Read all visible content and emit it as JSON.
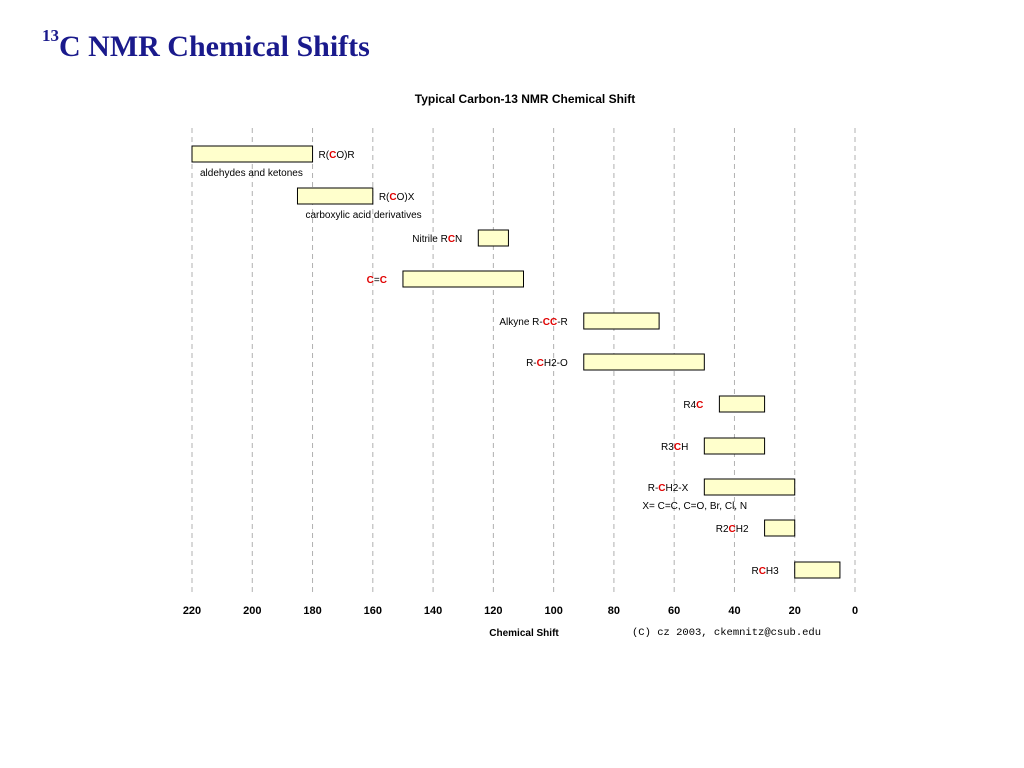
{
  "slide": {
    "title_sup": "13",
    "title_main": "C NMR Chemical Shifts"
  },
  "colors": {
    "title": "#1a1a8c",
    "bar_fill": "#ffffcc",
    "bar_stroke": "#000000",
    "highlight": "#e00000",
    "grid": "#b0b0b0"
  },
  "chart_data": {
    "type": "bar",
    "orientation": "horizontal-range",
    "title": "Typical Carbon-13 NMR Chemical Shift",
    "xlabel": "Chemical Shift",
    "credit": "(C) cz 2003, ckemnitz@csub.edu",
    "xlim": [
      220,
      0
    ],
    "x_reversed": true,
    "xticks": [
      220,
      200,
      180,
      160,
      140,
      120,
      100,
      80,
      60,
      40,
      20,
      0
    ],
    "grid": "vertical-dashed",
    "series": [
      {
        "label": [
          [
            "R(",
            false
          ],
          [
            "C",
            true
          ],
          [
            "O)R",
            false
          ]
        ],
        "sublabel": "aldehydes and ketones",
        "range": [
          220,
          180
        ],
        "label_side": "right"
      },
      {
        "label": [
          [
            "R(",
            false
          ],
          [
            "C",
            true
          ],
          [
            "O)X",
            false
          ]
        ],
        "sublabel": "carboxylic acid derivatives",
        "range": [
          185,
          160
        ],
        "label_side": "right"
      },
      {
        "label": [
          [
            "Nitrile R",
            false
          ],
          [
            "C",
            true
          ],
          [
            "N",
            false
          ]
        ],
        "sublabel": "",
        "range": [
          125,
          115
        ],
        "label_side": "left"
      },
      {
        "label": [
          [
            "C",
            true
          ],
          [
            "=",
            false
          ],
          [
            "C",
            true
          ]
        ],
        "sublabel": "",
        "range": [
          150,
          110
        ],
        "label_side": "left"
      },
      {
        "label": [
          [
            "Alkyne R-",
            false
          ],
          [
            "CC",
            true
          ],
          [
            "-R",
            false
          ]
        ],
        "sublabel": "",
        "range": [
          90,
          65
        ],
        "label_side": "left"
      },
      {
        "label": [
          [
            "R-",
            false
          ],
          [
            "C",
            true
          ],
          [
            "H2-O",
            false
          ]
        ],
        "sublabel": "",
        "range": [
          90,
          50
        ],
        "label_side": "left"
      },
      {
        "label": [
          [
            "R4",
            false
          ],
          [
            "C",
            true
          ]
        ],
        "sublabel": "",
        "range": [
          45,
          30
        ],
        "label_side": "left"
      },
      {
        "label": [
          [
            "R3",
            false
          ],
          [
            "C",
            true
          ],
          [
            "H",
            false
          ]
        ],
        "sublabel": "",
        "range": [
          50,
          30
        ],
        "label_side": "left"
      },
      {
        "label": [
          [
            "R-",
            false
          ],
          [
            "C",
            true
          ],
          [
            "H2-X",
            false
          ]
        ],
        "sublabel": "X= C=C, C=O, Br, Cl, N",
        "range": [
          50,
          20
        ],
        "label_side": "left"
      },
      {
        "label": [
          [
            "R2",
            false
          ],
          [
            "C",
            true
          ],
          [
            "H2",
            false
          ]
        ],
        "sublabel": "",
        "range": [
          30,
          20
        ],
        "label_side": "left"
      },
      {
        "label": [
          [
            "R",
            false
          ],
          [
            "C",
            true
          ],
          [
            "H3",
            false
          ]
        ],
        "sublabel": "",
        "range": [
          20,
          5
        ],
        "label_side": "left"
      }
    ]
  }
}
